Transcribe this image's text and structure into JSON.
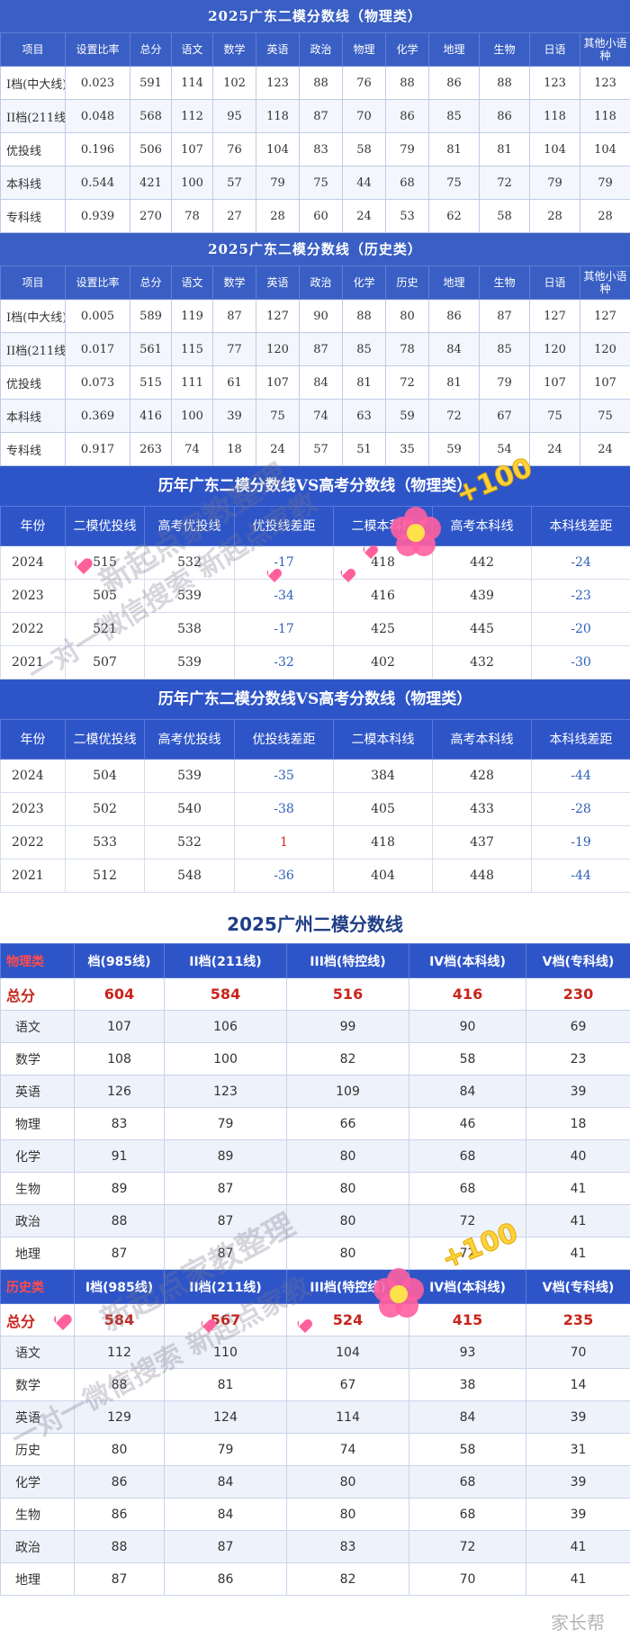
{
  "phys2025": {
    "title": "2025广东二模分数线（物理类）",
    "headers": [
      "项目",
      "设置比率",
      "总分",
      "语文",
      "数学",
      "英语",
      "政治",
      "物理",
      "化学",
      "地理",
      "生物",
      "日语",
      "其他小语种"
    ],
    "rows": [
      [
        "I档(中大线)",
        "0.023",
        "591",
        "114",
        "102",
        "123",
        "88",
        "76",
        "88",
        "86",
        "88",
        "123",
        "123"
      ],
      [
        "II档(211线)",
        "0.048",
        "568",
        "112",
        "95",
        "118",
        "87",
        "70",
        "86",
        "85",
        "86",
        "118",
        "118"
      ],
      [
        "优投线",
        "0.196",
        "506",
        "107",
        "76",
        "104",
        "83",
        "58",
        "79",
        "81",
        "81",
        "104",
        "104"
      ],
      [
        "本科线",
        "0.544",
        "421",
        "100",
        "57",
        "79",
        "75",
        "44",
        "68",
        "75",
        "72",
        "79",
        "79"
      ],
      [
        "专科线",
        "0.939",
        "270",
        "78",
        "27",
        "28",
        "60",
        "24",
        "53",
        "62",
        "58",
        "28",
        "28"
      ]
    ]
  },
  "hist2025": {
    "title": "2025广东二模分数线（历史类）",
    "headers": [
      "项目",
      "设置比率",
      "总分",
      "语文",
      "数学",
      "英语",
      "政治",
      "化学",
      "历史",
      "地理",
      "生物",
      "日语",
      "其他小语种"
    ],
    "rows": [
      [
        "I档(中大线)",
        "0.005",
        "589",
        "119",
        "87",
        "127",
        "90",
        "88",
        "80",
        "86",
        "87",
        "127",
        "127"
      ],
      [
        "II档(211线)",
        "0.017",
        "561",
        "115",
        "77",
        "120",
        "87",
        "85",
        "78",
        "84",
        "85",
        "120",
        "120"
      ],
      [
        "优投线",
        "0.073",
        "515",
        "111",
        "61",
        "107",
        "84",
        "81",
        "72",
        "81",
        "79",
        "107",
        "107"
      ],
      [
        "本科线",
        "0.369",
        "416",
        "100",
        "39",
        "75",
        "74",
        "63",
        "59",
        "72",
        "67",
        "75",
        "75"
      ],
      [
        "专科线",
        "0.917",
        "263",
        "74",
        "18",
        "24",
        "57",
        "51",
        "35",
        "59",
        "54",
        "24",
        "24"
      ]
    ]
  },
  "cmp1": {
    "title": "历年广东二模分数线VS高考分数线（物理类）",
    "headers": [
      "年份",
      "二模优投线",
      "高考优投线",
      "优投线差距",
      "二模本科线",
      "高考本科线",
      "本科线差距"
    ],
    "rows": [
      [
        "2024",
        "515",
        "532",
        "-17",
        "418",
        "442",
        "-24"
      ],
      [
        "2023",
        "505",
        "539",
        "-34",
        "416",
        "439",
        "-23"
      ],
      [
        "2022",
        "521",
        "538",
        "-17",
        "425",
        "445",
        "-20"
      ],
      [
        "2021",
        "507",
        "539",
        "-32",
        "402",
        "432",
        "-30"
      ]
    ]
  },
  "cmp2": {
    "title": "历年广东二模分数线VS高考分数线（物理类）",
    "headers": [
      "年份",
      "二模优投线",
      "高考优投线",
      "优投线差距",
      "二模本科线",
      "高考本科线",
      "本科线差距"
    ],
    "rows": [
      [
        "2024",
        "504",
        "539",
        "-35",
        "384",
        "428",
        "-44"
      ],
      [
        "2023",
        "502",
        "540",
        "-38",
        "405",
        "433",
        "-28"
      ],
      [
        "2022",
        "533",
        "532",
        "1",
        "418",
        "437",
        "-19"
      ],
      [
        "2021",
        "512",
        "548",
        "-36",
        "404",
        "448",
        "-44"
      ]
    ]
  },
  "gz": {
    "title": "2025广州二模分数线",
    "phys_headers": [
      "物理类",
      "档(985线)",
      "II档(211线)",
      "III档(特控线)",
      "IV档(本科线)",
      "V档(专科线)"
    ],
    "phys_total": [
      "总分",
      "604",
      "584",
      "516",
      "416",
      "230"
    ],
    "phys_rows": [
      [
        "语文",
        "107",
        "106",
        "99",
        "90",
        "69"
      ],
      [
        "数学",
        "108",
        "100",
        "82",
        "58",
        "23"
      ],
      [
        "英语",
        "126",
        "123",
        "109",
        "84",
        "39"
      ],
      [
        "物理",
        "83",
        "79",
        "66",
        "46",
        "18"
      ],
      [
        "化学",
        "91",
        "89",
        "80",
        "68",
        "40"
      ],
      [
        "生物",
        "89",
        "87",
        "80",
        "68",
        "41"
      ],
      [
        "政治",
        "88",
        "87",
        "80",
        "72",
        "41"
      ],
      [
        "地理",
        "87",
        "87",
        "80",
        "72",
        "41"
      ]
    ],
    "hist_headers": [
      "历史类",
      "I档(985线)",
      "II档(211线)",
      "III档(特控线)",
      "IV档(本科线)",
      "V档(专科线)"
    ],
    "hist_total": [
      "总分",
      "584",
      "567",
      "524",
      "415",
      "235"
    ],
    "hist_rows": [
      [
        "语文",
        "112",
        "110",
        "104",
        "93",
        "70"
      ],
      [
        "数学",
        "88",
        "81",
        "67",
        "38",
        "14"
      ],
      [
        "英语",
        "129",
        "124",
        "114",
        "84",
        "39"
      ],
      [
        "历史",
        "80",
        "79",
        "74",
        "58",
        "31"
      ],
      [
        "化学",
        "86",
        "84",
        "80",
        "68",
        "39"
      ],
      [
        "生物",
        "86",
        "84",
        "80",
        "68",
        "39"
      ],
      [
        "政治",
        "88",
        "87",
        "83",
        "72",
        "41"
      ],
      [
        "地理",
        "87",
        "86",
        "82",
        "70",
        "41"
      ]
    ]
  },
  "watermarks": {
    "line1": "新起点家教整理",
    "line2": "一对一微信搜索 新起点家教",
    "plus": "+100",
    "corner": "家长帮"
  }
}
